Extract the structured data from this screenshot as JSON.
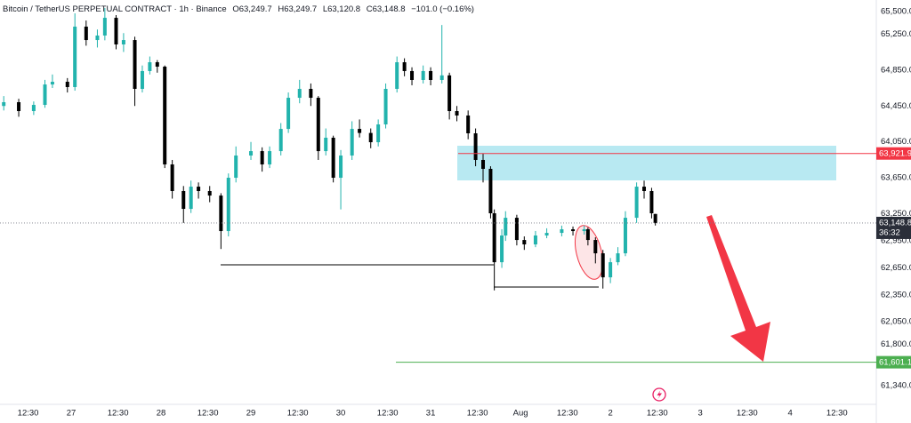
{
  "chart_data": {
    "type": "candlestick",
    "title": "Bitcoin / TetherUS PERPETUAL CONTRACT · 1h · Binance",
    "ohlc_labels": [
      "O63,249.7",
      "H63,249.7",
      "L63,120.8",
      "C63,148.8",
      "−101.0 (−0.16%)"
    ],
    "x": [
      -18,
      -14,
      -10,
      -7,
      -5,
      -1,
      1,
      4,
      7,
      9,
      12,
      14,
      17,
      19,
      21,
      23,
      25,
      27,
      30,
      32,
      34,
      37,
      40,
      42,
      44,
      48,
      51,
      53,
      56,
      58,
      61,
      64,
      66,
      68,
      70,
      72,
      75,
      77,
      80,
      82,
      84,
      87,
      89,
      91,
      94,
      96,
      99,
      101,
      103,
      106,
      108,
      110,
      112,
      113,
      115,
      116,
      119,
      121,
      124,
      127,
      131,
      134,
      137,
      138,
      140,
      142,
      144,
      146,
      148,
      151,
      153,
      155,
      156
    ],
    "open": [
      64450,
      64492,
      64393,
      64462,
      64689,
      64719,
      64660,
      65332,
      65183,
      65233,
      65430,
      65134,
      65183,
      64640,
      64838,
      64936,
      64887,
      63800,
      63504,
      63306,
      63553,
      63504,
      63454,
      63059,
      63652,
      63899,
      63948,
      63800,
      63948,
      64195,
      64541,
      64640,
      64541,
      63948,
      64097,
      63652,
      63899,
      64195,
      64150,
      64047,
      64245,
      64640,
      64936,
      64838,
      64739,
      64838,
      64739,
      64790,
      64393,
      64344,
      64146,
      63850,
      63751,
      63257,
      62713,
      63010,
      63207,
      62960,
      62911,
      63010,
      63039,
      63079,
      63059,
      63079,
      62960,
      62812,
      62545,
      62713,
      62812,
      63207,
      63553,
      63504,
      63249.7
    ],
    "high": [
      64560,
      64530,
      64500,
      64740,
      64800,
      64760,
      65480,
      65400,
      65300,
      65540,
      65460,
      65260,
      65220,
      64900,
      65000,
      64960,
      64900,
      63850,
      63560,
      63620,
      63600,
      63560,
      63480,
      63700,
      64000,
      64050,
      63990,
      64000,
      64260,
      64600,
      64740,
      64700,
      64560,
      64200,
      64120,
      63960,
      64280,
      64300,
      64200,
      64300,
      64700,
      65000,
      64980,
      64880,
      64900,
      64880,
      65350,
      64820,
      64450,
      64400,
      64200,
      63920,
      63780,
      63300,
      63080,
      63280,
      63240,
      63000,
      63060,
      63090,
      63120,
      63110,
      63120,
      63100,
      62990,
      62850,
      62760,
      62880,
      63280,
      63600,
      63620,
      63540,
      63249.7
    ],
    "low": [
      64400,
      64330,
      64350,
      64430,
      64650,
      64600,
      64620,
      65120,
      65100,
      65180,
      65080,
      65050,
      64450,
      64600,
      64800,
      64820,
      63760,
      63420,
      63150,
      63260,
      63420,
      63380,
      62860,
      63000,
      63600,
      63850,
      63720,
      63760,
      63900,
      64150,
      64480,
      64450,
      63850,
      63900,
      63600,
      63300,
      63850,
      64100,
      63980,
      64000,
      64200,
      64600,
      64780,
      64680,
      64700,
      64680,
      64700,
      64300,
      64280,
      64080,
      63780,
      63600,
      63200,
      62400,
      62650,
      62950,
      62900,
      62850,
      62880,
      62980,
      63000,
      63010,
      63020,
      62900,
      62700,
      62420,
      62480,
      62680,
      62780,
      63150,
      63420,
      63200,
      63120.8
    ],
    "close": [
      64492,
      64393,
      64462,
      64689,
      64719,
      64660,
      65332,
      65183,
      65233,
      65430,
      65134,
      65183,
      64640,
      64838,
      64936,
      64887,
      63800,
      63504,
      63306,
      63553,
      63504,
      63454,
      63059,
      63652,
      63899,
      63948,
      63800,
      63948,
      64195,
      64541,
      64640,
      64541,
      63948,
      64097,
      63652,
      63899,
      64195,
      64150,
      64047,
      64245,
      64640,
      64936,
      64838,
      64739,
      64838,
      64739,
      64790,
      64393,
      64344,
      64146,
      63850,
      63751,
      63257,
      62713,
      63010,
      63207,
      62960,
      62911,
      63010,
      63039,
      63079,
      63059,
      63079,
      62960,
      62812,
      62545,
      62713,
      62812,
      63207,
      63553,
      63504,
      63257,
      63148.8
    ],
    "up_color": "#22b3ad",
    "down_color": "#000000",
    "xlim": [
      -19,
      215
    ],
    "xticks": [
      {
        "value": -11.5,
        "label": "12:30"
      },
      {
        "value": 0,
        "label": "27"
      },
      {
        "value": 12.5,
        "label": "12:30"
      },
      {
        "value": 24,
        "label": "28"
      },
      {
        "value": 36.5,
        "label": "12:30"
      },
      {
        "value": 48,
        "label": "29"
      },
      {
        "value": 60.5,
        "label": "12:30"
      },
      {
        "value": 72,
        "label": "30"
      },
      {
        "value": 84.5,
        "label": "12:30"
      },
      {
        "value": 96,
        "label": "31"
      },
      {
        "value": 108.5,
        "label": "12:30"
      },
      {
        "value": 120,
        "label": "Aug"
      },
      {
        "value": 132.5,
        "label": "12:30"
      },
      {
        "value": 144,
        "label": "2"
      },
      {
        "value": 156.5,
        "label": "12:30"
      },
      {
        "value": 168,
        "label": "3"
      },
      {
        "value": 180.5,
        "label": "12:30"
      },
      {
        "value": 192,
        "label": "4"
      },
      {
        "value": 204.5,
        "label": "12:30"
      }
    ],
    "ylim": [
      61133,
      65628
    ],
    "yticks": [
      {
        "value": 65500,
        "label": "65,500.0"
      },
      {
        "value": 65250,
        "label": "65,250.0"
      },
      {
        "value": 64850,
        "label": "64,850.0"
      },
      {
        "value": 64450,
        "label": "64,450.0"
      },
      {
        "value": 64050,
        "label": "64,050.0"
      },
      {
        "value": 63650,
        "label": "63,650.0"
      },
      {
        "value": 63250,
        "label": "63,250.0"
      },
      {
        "value": 62950,
        "label": "62,950.0"
      },
      {
        "value": 62650,
        "label": "62,650.0"
      },
      {
        "value": 62350,
        "label": "62,350.0"
      },
      {
        "value": 62050,
        "label": "62,050.0"
      },
      {
        "value": 61800,
        "label": "61,800.0"
      },
      {
        "value": 61340,
        "label": "61,340.0"
      }
    ],
    "grid": false,
    "price_lines": [
      {
        "value": 63921.9,
        "label": "63,921.9",
        "color": "#f23645"
      },
      {
        "value": 61601.1,
        "label": "61,601.1",
        "color": "#4caf50"
      }
    ],
    "last_price": {
      "value": 63148.8,
      "label": "63,148.8",
      "countdown": "36:32"
    }
  }
}
